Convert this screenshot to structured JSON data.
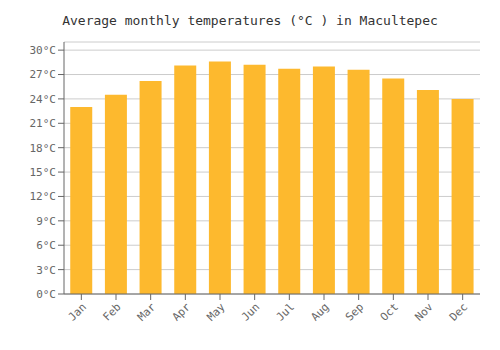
{
  "chart_data": {
    "type": "bar",
    "title": "Average monthly temperatures (°C ) in Macultepec",
    "categories": [
      "Jan",
      "Feb",
      "Mar",
      "Apr",
      "May",
      "Jun",
      "Jul",
      "Aug",
      "Sep",
      "Oct",
      "Nov",
      "Dec"
    ],
    "values": [
      23.0,
      24.5,
      26.2,
      28.1,
      28.6,
      28.2,
      27.7,
      28.0,
      27.6,
      26.5,
      25.1,
      24.0
    ],
    "color": "#FDB92E",
    "ylim": [
      0,
      31
    ],
    "yticks": [
      {
        "value": 0,
        "label": "0°C"
      },
      {
        "value": 3,
        "label": "3°C"
      },
      {
        "value": 6,
        "label": "6°C"
      },
      {
        "value": 9,
        "label": "9°C"
      },
      {
        "value": 12,
        "label": "12°C"
      },
      {
        "value": 15,
        "label": "15°C"
      },
      {
        "value": 18,
        "label": "18°C"
      },
      {
        "value": 21,
        "label": "21°C"
      },
      {
        "value": 24,
        "label": "24°C"
      },
      {
        "value": 27,
        "label": "27°C"
      },
      {
        "value": 30,
        "label": "30°C"
      }
    ],
    "grid": true
  }
}
